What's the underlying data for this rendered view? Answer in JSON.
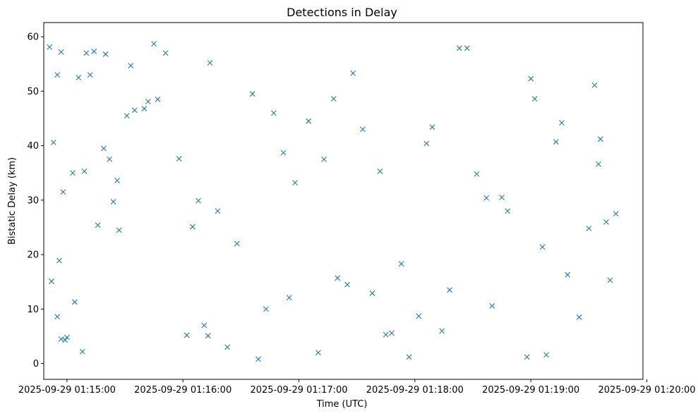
{
  "chart_data": {
    "type": "scatter",
    "title": "Detections in Delay",
    "xlabel": "Time (UTC)",
    "ylabel": "Bistatic Delay (km)",
    "marker": "x",
    "color": "#1f77b4",
    "grid": false,
    "legend": "none",
    "xlim": [
      "2025-09-29 01:14:48",
      "2025-09-29 01:19:58"
    ],
    "ylim": [
      -2.9,
      62.6
    ],
    "x_ticks": [
      {
        "label": "2025-09-29 01:15:00",
        "value": "2025-09-29 01:15:00"
      },
      {
        "label": "2025-09-29 01:16:00",
        "value": "2025-09-29 01:16:00"
      },
      {
        "label": "2025-09-29 01:17:00",
        "value": "2025-09-29 01:17:00"
      },
      {
        "label": "2025-09-29 01:18:00",
        "value": "2025-09-29 01:18:00"
      },
      {
        "label": "2025-09-29 01:19:00",
        "value": "2025-09-29 01:19:00"
      },
      {
        "label": "2025-09-29 01:20:00",
        "value": "2025-09-29 01:20:00"
      }
    ],
    "y_ticks": [
      0,
      10,
      20,
      30,
      40,
      50,
      60
    ],
    "x": [
      "2025-09-29 01:14:51",
      "2025-09-29 01:14:53",
      "2025-09-29 01:14:55",
      "2025-09-29 01:14:56",
      "2025-09-29 01:14:57",
      "2025-09-29 01:14:59",
      "2025-09-29 01:15:00",
      "2025-09-29 01:15:04",
      "2025-09-29 01:15:09",
      "2025-09-29 01:15:10",
      "2025-09-29 01:15:12",
      "2025-09-29 01:15:22",
      "2025-09-29 01:15:24",
      "2025-09-29 01:15:33",
      "2025-09-29 01:15:42",
      "2025-09-29 01:15:47",
      "2025-09-29 01:15:58",
      "2025-09-29 01:16:02",
      "2025-09-29 01:16:11",
      "2025-09-29 01:16:14",
      "2025-09-29 01:16:18",
      "2025-09-29 01:16:36",
      "2025-09-29 01:16:43",
      "2025-09-29 01:16:58",
      "2025-09-29 01:17:10",
      "2025-09-29 01:17:18",
      "2025-09-29 01:17:20",
      "2025-09-29 01:17:28",
      "2025-09-29 01:17:38",
      "2025-09-29 01:17:48",
      "2025-09-29 01:17:53",
      "2025-09-29 01:18:02",
      "2025-09-29 01:18:14",
      "2025-09-29 01:18:18",
      "2025-09-29 01:18:32",
      "2025-09-29 01:18:40",
      "2025-09-29 01:18:48",
      "2025-09-29 01:19:00",
      "2025-09-29 01:19:06",
      "2025-09-29 01:19:13",
      "2025-09-29 01:19:19",
      "2025-09-29 01:19:33",
      "2025-09-29 01:19:35",
      "2025-09-29 01:19:39",
      "2025-09-29 01:19:41",
      "2025-09-29 01:14:52",
      "2025-09-29 01:14:55",
      "2025-09-29 01:14:58",
      "2025-09-29 01:15:03",
      "2025-09-29 01:15:08",
      "2025-09-29 01:15:16",
      "2025-09-29 01:15:19",
      "2025-09-29 01:15:26",
      "2025-09-29 01:15:27",
      "2025-09-29 01:15:35",
      "2025-09-29 01:15:40",
      "2025-09-29 01:15:51",
      "2025-09-29 01:16:13",
      "2025-09-29 01:16:23",
      "2025-09-29 01:16:39",
      "2025-09-29 01:16:52",
      "2025-09-29 01:17:13",
      "2025-09-29 01:17:25",
      "2025-09-29 01:17:42",
      "2025-09-29 01:17:57",
      "2025-09-29 01:18:06",
      "2025-09-29 01:18:27",
      "2025-09-29 01:18:45",
      "2025-09-29 01:19:02",
      "2025-09-29 01:19:16",
      "2025-09-29 01:19:30",
      "2025-09-29 01:19:44",
      "2025-09-29 01:14:57",
      "2025-09-29 01:15:06",
      "2025-09-29 01:15:14",
      "2025-09-29 01:15:31",
      "2025-09-29 01:15:45",
      "2025-09-29 01:16:05",
      "2025-09-29 01:16:28",
      "2025-09-29 01:16:47",
      "2025-09-29 01:17:05",
      "2025-09-29 01:17:33",
      "2025-09-29 01:18:09",
      "2025-09-29 01:18:37",
      "2025-09-29 01:19:08",
      "2025-09-29 01:19:36",
      "2025-09-29 01:15:20",
      "2025-09-29 01:16:08",
      "2025-09-29 01:16:55",
      "2025-09-29 01:17:45",
      "2025-09-29 01:18:23",
      "2025-09-29 01:18:58",
      "2025-09-29 01:19:25"
    ],
    "y": [
      58.1,
      40.6,
      53.0,
      18.9,
      57.2,
      4.3,
      4.8,
      11.3,
      35.3,
      57.0,
      53.0,
      37.5,
      29.7,
      54.7,
      48.1,
      48.5,
      37.6,
      5.2,
      7.0,
      55.2,
      28.0,
      49.5,
      10.0,
      33.2,
      2.0,
      48.6,
      15.7,
      53.3,
      12.9,
      5.6,
      18.3,
      8.7,
      6.0,
      13.5,
      34.8,
      10.6,
      28.0,
      52.3,
      21.4,
      40.7,
      16.3,
      51.1,
      36.6,
      26.0,
      15.3,
      15.1,
      8.6,
      31.5,
      35.0,
      2.2,
      25.4,
      39.5,
      33.6,
      24.5,
      46.5,
      46.8,
      57.0,
      5.1,
      3.0,
      0.8,
      38.7,
      37.5,
      14.5,
      35.3,
      1.2,
      40.4,
      57.9,
      30.5,
      48.6,
      44.2,
      24.8,
      27.5,
      4.5,
      52.5,
      57.3,
      45.5,
      58.7,
      25.1,
      22.0,
      46.0,
      44.5,
      43.0,
      43.4,
      30.4,
      1.6,
      41.2,
      56.8,
      29.9,
      12.1,
      5.3,
      57.9,
      1.2,
      8.5
    ]
  }
}
